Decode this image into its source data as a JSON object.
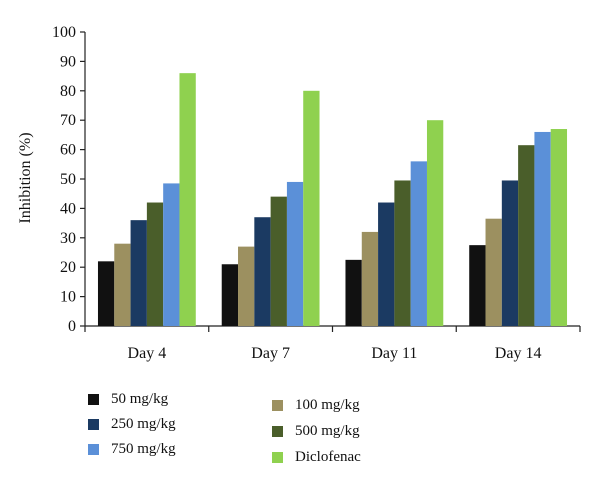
{
  "chart_data": {
    "type": "bar",
    "categories": [
      "Day 4",
      "Day 7",
      "Day 11",
      "Day 14"
    ],
    "series": [
      {
        "name": "50 mg/kg",
        "color": "#111111",
        "values": [
          22,
          21,
          22.5,
          27.5
        ]
      },
      {
        "name": "100 mg/kg",
        "color": "#9c9060",
        "values": [
          28,
          27,
          32,
          36.5
        ]
      },
      {
        "name": "250 mg/kg",
        "color": "#1b3a62",
        "values": [
          36,
          37,
          42,
          49.5
        ]
      },
      {
        "name": "500 mg/kg",
        "color": "#4a5e2a",
        "values": [
          42,
          44,
          49.5,
          61.5
        ]
      },
      {
        "name": "750 mg/kg",
        "color": "#5b90d8",
        "values": [
          48.5,
          49,
          56,
          66
        ]
      },
      {
        "name": "Diclofenac",
        "color": "#8fd14f",
        "values": [
          86,
          80,
          70,
          67
        ]
      }
    ],
    "title": "",
    "xlabel": "",
    "ylabel": "Inhibition (%)",
    "ylim": [
      0,
      100
    ],
    "yticks": [
      0,
      10,
      20,
      30,
      40,
      50,
      60,
      70,
      80,
      90,
      100
    ],
    "grid": false,
    "legend_position": "bottom"
  }
}
